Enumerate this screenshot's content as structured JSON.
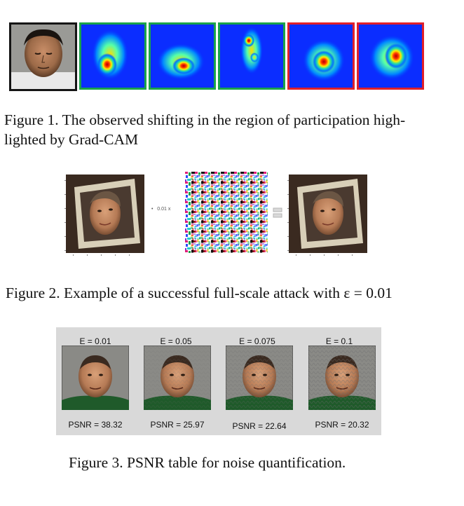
{
  "figure1": {
    "caption_line1": "Figure 1. The observed shifting in the region of participation high-",
    "caption_line2": "lighted by Grad-CAM",
    "frame_colors": {
      "original": "#151515",
      "green": "#1aa34a",
      "red": "#e0202a"
    }
  },
  "figure2": {
    "caption_prefix": "Figure 2. Example of a successful full-scale attack with ",
    "caption_math": "ε = 0.01",
    "multiplier_label": "0.01 x",
    "bullet": "•"
  },
  "figure3": {
    "caption": "Figure 3. PSNR table for noise quantification.",
    "panels": [
      {
        "epsilon": "E = 0.01",
        "psnr": "PSNR = 38.32"
      },
      {
        "epsilon": "E = 0.05",
        "psnr": "PSNR = 25.97"
      },
      {
        "epsilon": "E = 0.075",
        "psnr": "PSNR = 22.64"
      },
      {
        "epsilon": "E = 0.1",
        "psnr": "PSNR = 20.32"
      }
    ]
  }
}
